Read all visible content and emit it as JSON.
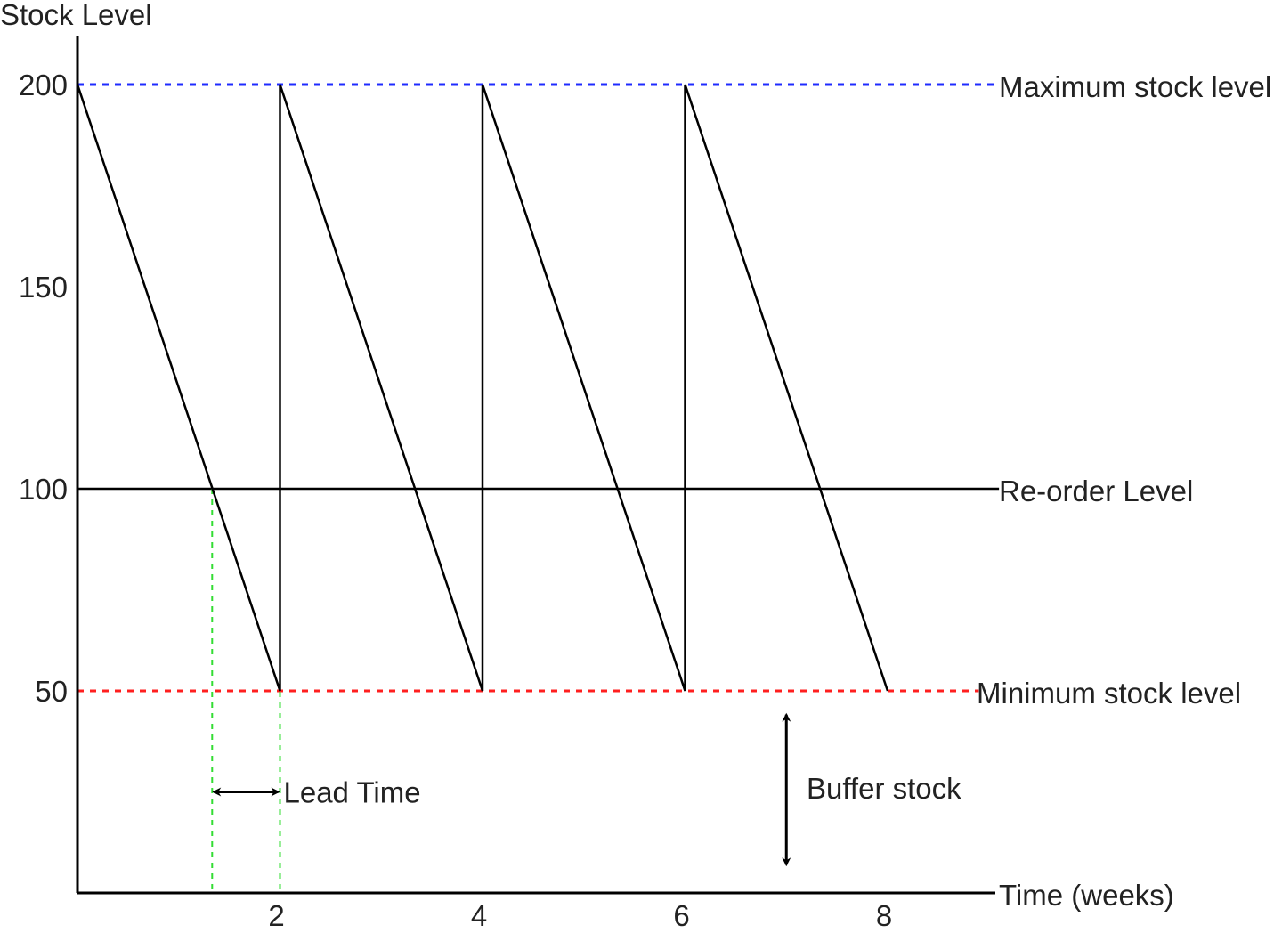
{
  "colors": {
    "axis": "#000000",
    "sawtooth": "#000000",
    "max_line": "#1f2bff",
    "min_line": "#ff1f1f",
    "reorder_line": "#000000",
    "lead_guides": "#33dd33"
  },
  "chart_data": {
    "type": "line",
    "title": "",
    "xlabel": "Time (weeks)",
    "ylabel": "Stock Level",
    "xlim": [
      0,
      9.5
    ],
    "ylim": [
      0,
      210
    ],
    "x_ticks": [
      {
        "value": 2,
        "label": "2"
      },
      {
        "value": 4,
        "label": "4"
      },
      {
        "value": 6,
        "label": "6"
      },
      {
        "value": 8,
        "label": "8"
      }
    ],
    "y_ticks": [
      {
        "value": 50,
        "label": "50"
      },
      {
        "value": 100,
        "label": "100"
      },
      {
        "value": 150,
        "label": "150"
      },
      {
        "value": 200,
        "label": "200"
      }
    ],
    "series": [
      {
        "points": [
          [
            0,
            200
          ],
          [
            2,
            50
          ],
          [
            2,
            200
          ],
          [
            4,
            50
          ],
          [
            4,
            200
          ],
          [
            6,
            50
          ],
          [
            6,
            200
          ],
          [
            8,
            50
          ]
        ]
      }
    ],
    "reference_lines": {
      "maximum": {
        "y": 200,
        "x_end": 9.1,
        "label": "Maximum stock level"
      },
      "reorder": {
        "y": 100,
        "x_end": 9.1,
        "label": "Re-order Level"
      },
      "minimum": {
        "y": 50,
        "x_end": 8.9,
        "label": "Minimum stock level"
      }
    },
    "lead_time": {
      "x_start": 1.33,
      "x_end": 2,
      "arrow_y": 25,
      "label": "Lead Time"
    },
    "buffer_stock": {
      "x": 7,
      "y_top": 45,
      "y_bottom": 7,
      "label": "Buffer stock"
    }
  }
}
